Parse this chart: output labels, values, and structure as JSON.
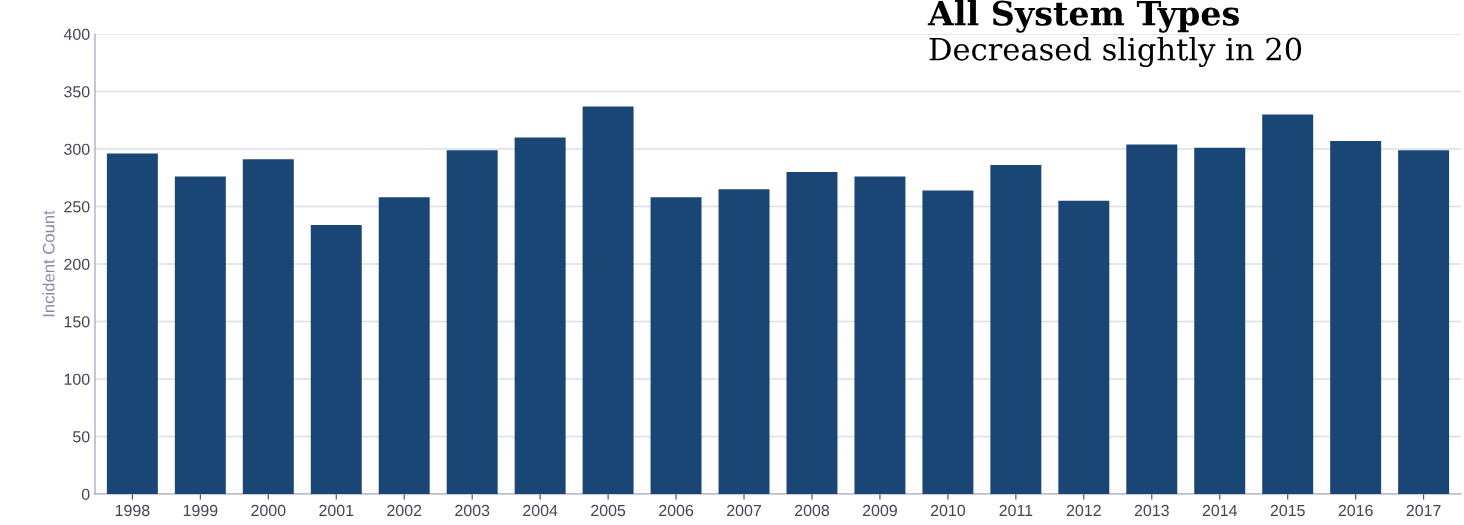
{
  "chart_data": {
    "type": "bar",
    "title": "All System Types",
    "subtitle": "Decreased slightly in 20",
    "ylabel": "Incident Count",
    "categories": [
      "1998",
      "1999",
      "2000",
      "2001",
      "2002",
      "2003",
      "2004",
      "2005",
      "2006",
      "2007",
      "2008",
      "2009",
      "2010",
      "2011",
      "2012",
      "2013",
      "2014",
      "2015",
      "2016",
      "2017"
    ],
    "values": [
      296,
      276,
      291,
      234,
      258,
      299,
      310,
      337,
      258,
      265,
      280,
      276,
      264,
      286,
      255,
      304,
      301,
      330,
      307,
      299
    ],
    "color": "#1a4675",
    "ylim": [
      0,
      400
    ],
    "yticks": [
      0,
      50,
      100,
      150,
      200,
      250,
      300,
      350,
      400
    ],
    "grid": "y",
    "legend": false
  }
}
